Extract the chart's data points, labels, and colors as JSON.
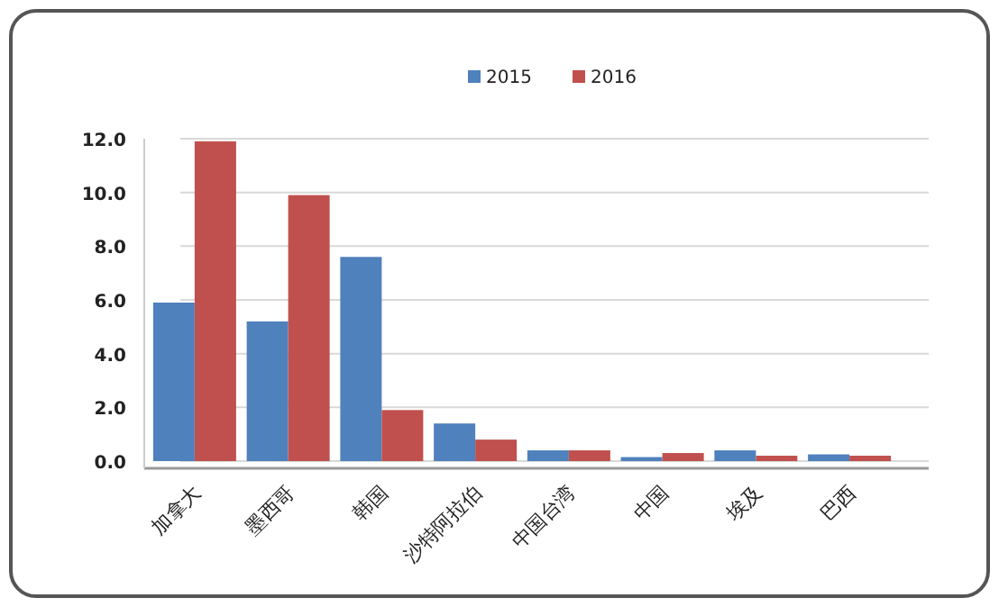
{
  "chart_data": {
    "type": "bar",
    "categories": [
      "加拿大",
      "墨西哥",
      "韩国",
      "沙特阿拉伯",
      "中国台湾",
      "中国",
      "埃及",
      "巴西"
    ],
    "series": [
      {
        "name": "2015",
        "color": "#4f81bd",
        "values": [
          5.9,
          5.2,
          7.6,
          1.4,
          0.4,
          0.15,
          0.4,
          0.25
        ]
      },
      {
        "name": "2016",
        "color": "#c0504d",
        "values": [
          11.9,
          9.9,
          1.9,
          0.8,
          0.4,
          0.3,
          0.2,
          0.2
        ]
      }
    ],
    "ylim": [
      0,
      12
    ],
    "yticks": [
      {
        "value": 0,
        "label": "0.0"
      },
      {
        "value": 2,
        "label": "2.0"
      },
      {
        "value": 4,
        "label": "4.0"
      },
      {
        "value": 6,
        "label": "6.0"
      },
      {
        "value": 8,
        "label": "8.0"
      },
      {
        "value": 10,
        "label": "10.0"
      },
      {
        "value": 12,
        "label": "12.0"
      }
    ],
    "grid": "y",
    "legend": "top"
  }
}
